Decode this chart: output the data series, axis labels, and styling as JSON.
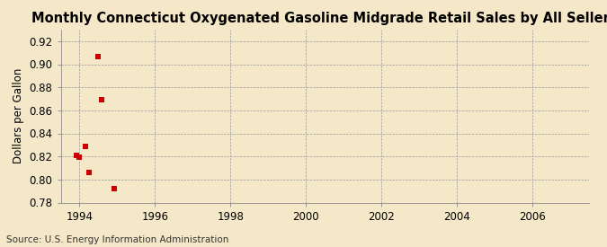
{
  "title": "Monthly Connecticut Oxygenated Gasoline Midgrade Retail Sales by All Sellers",
  "ylabel": "Dollars per Gallon",
  "source": "Source: U.S. Energy Information Administration",
  "background_color": "#f5e8c8",
  "data_color": "#cc0000",
  "x_data": [
    1993.917,
    1994.0,
    1994.167,
    1994.25,
    1994.5,
    1994.583,
    1994.917
  ],
  "y_data": [
    0.821,
    0.819,
    0.829,
    0.806,
    0.907,
    0.869,
    0.792
  ],
  "xlim": [
    1993.5,
    2007.5
  ],
  "ylim": [
    0.78,
    0.93
  ],
  "xticks": [
    1994,
    1996,
    1998,
    2000,
    2002,
    2004,
    2006
  ],
  "yticks": [
    0.78,
    0.8,
    0.82,
    0.84,
    0.86,
    0.88,
    0.9,
    0.92
  ],
  "title_fontsize": 10.5,
  "label_fontsize": 8.5,
  "tick_fontsize": 8.5,
  "source_fontsize": 7.5,
  "marker": "s",
  "marker_size": 16
}
